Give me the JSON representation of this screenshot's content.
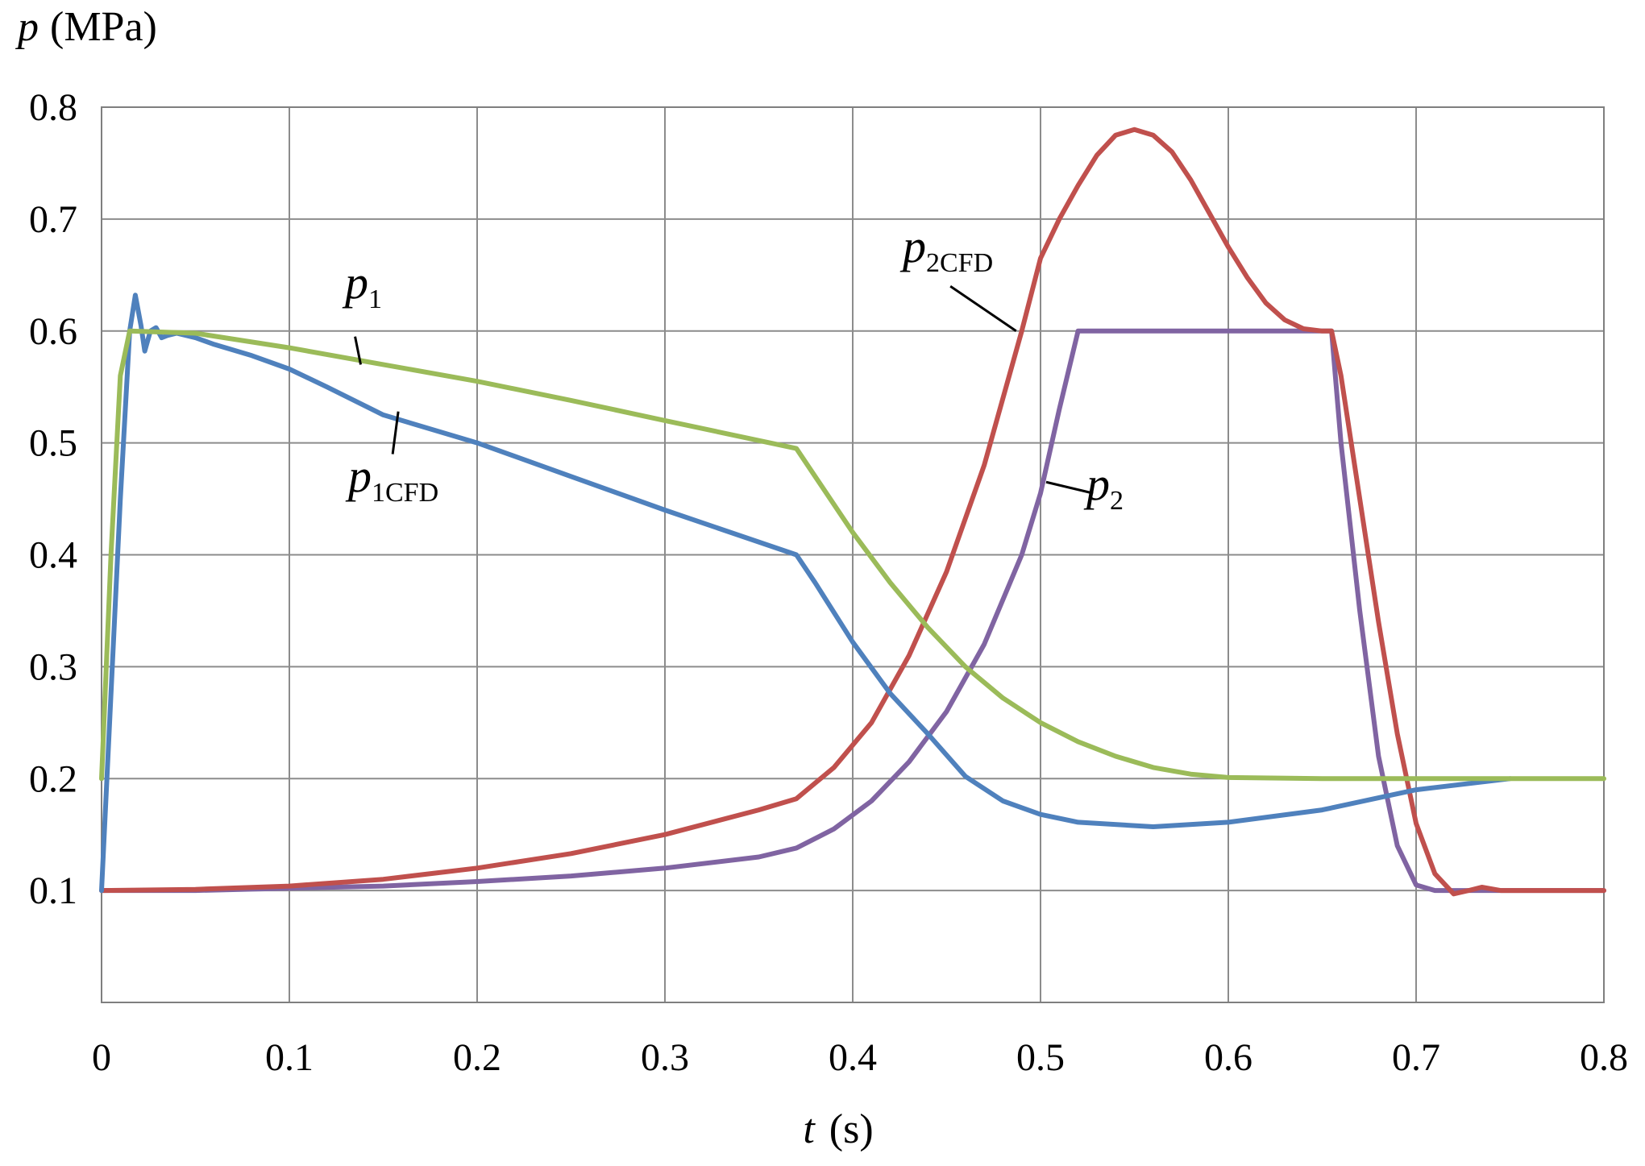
{
  "chart_data": {
    "type": "line",
    "xlabel": {
      "symbol": "t",
      "unit": "(s)"
    },
    "ylabel": {
      "symbol": "p",
      "unit": "(MPa)"
    },
    "xlim": [
      0,
      0.8
    ],
    "ylim": [
      0,
      0.8
    ],
    "xticks": [
      0,
      0.1,
      0.2,
      0.3,
      0.4,
      0.5,
      0.6,
      0.7,
      0.8
    ],
    "yticks": [
      0.1,
      0.2,
      0.3,
      0.4,
      0.5,
      0.6,
      0.7,
      0.8
    ],
    "xtick_labels": [
      "0",
      "0.1",
      "0.2",
      "0.3",
      "0.4",
      "0.5",
      "0.6",
      "0.7",
      "0.8"
    ],
    "ytick_labels": [
      "0.1",
      "0.2",
      "0.3",
      "0.4",
      "0.5",
      "0.6",
      "0.7",
      "0.8"
    ],
    "grid": true,
    "series": [
      {
        "name": "p1",
        "label_main": "p",
        "label_sub": "1",
        "color": "#9bbb59",
        "points": [
          [
            0,
            0.2
          ],
          [
            0.005,
            0.4
          ],
          [
            0.01,
            0.56
          ],
          [
            0.015,
            0.6
          ],
          [
            0.05,
            0.598
          ],
          [
            0.1,
            0.585
          ],
          [
            0.15,
            0.57
          ],
          [
            0.2,
            0.555
          ],
          [
            0.25,
            0.538
          ],
          [
            0.3,
            0.52
          ],
          [
            0.37,
            0.495
          ],
          [
            0.38,
            0.47
          ],
          [
            0.4,
            0.42
          ],
          [
            0.42,
            0.375
          ],
          [
            0.44,
            0.335
          ],
          [
            0.46,
            0.3
          ],
          [
            0.48,
            0.272
          ],
          [
            0.5,
            0.25
          ],
          [
            0.52,
            0.233
          ],
          [
            0.54,
            0.22
          ],
          [
            0.56,
            0.21
          ],
          [
            0.58,
            0.204
          ],
          [
            0.6,
            0.201
          ],
          [
            0.65,
            0.2
          ],
          [
            0.7,
            0.2
          ],
          [
            0.75,
            0.2
          ],
          [
            0.8,
            0.2
          ]
        ]
      },
      {
        "name": "p1CFD",
        "label_main": "p",
        "label_sub": "1CFD",
        "color": "#4f81bd",
        "points": [
          [
            0,
            0.1
          ],
          [
            0.01,
            0.45
          ],
          [
            0.015,
            0.6
          ],
          [
            0.018,
            0.632
          ],
          [
            0.021,
            0.605
          ],
          [
            0.023,
            0.582
          ],
          [
            0.026,
            0.6
          ],
          [
            0.029,
            0.603
          ],
          [
            0.032,
            0.594
          ],
          [
            0.035,
            0.596
          ],
          [
            0.04,
            0.598
          ],
          [
            0.05,
            0.594
          ],
          [
            0.06,
            0.588
          ],
          [
            0.08,
            0.578
          ],
          [
            0.1,
            0.566
          ],
          [
            0.12,
            0.55
          ],
          [
            0.15,
            0.525
          ],
          [
            0.2,
            0.5
          ],
          [
            0.25,
            0.47
          ],
          [
            0.3,
            0.44
          ],
          [
            0.37,
            0.4
          ],
          [
            0.38,
            0.375
          ],
          [
            0.4,
            0.322
          ],
          [
            0.42,
            0.276
          ],
          [
            0.44,
            0.24
          ],
          [
            0.46,
            0.202
          ],
          [
            0.48,
            0.18
          ],
          [
            0.5,
            0.168
          ],
          [
            0.52,
            0.161
          ],
          [
            0.56,
            0.157
          ],
          [
            0.6,
            0.161
          ],
          [
            0.65,
            0.172
          ],
          [
            0.7,
            0.19
          ],
          [
            0.75,
            0.2
          ]
        ]
      },
      {
        "name": "p2CFD",
        "label_main": "p",
        "label_sub": "2CFD",
        "color": "#c0504d",
        "points": [
          [
            0,
            0.1
          ],
          [
            0.05,
            0.101
          ],
          [
            0.1,
            0.104
          ],
          [
            0.15,
            0.11
          ],
          [
            0.2,
            0.12
          ],
          [
            0.25,
            0.133
          ],
          [
            0.3,
            0.15
          ],
          [
            0.35,
            0.172
          ],
          [
            0.37,
            0.182
          ],
          [
            0.39,
            0.21
          ],
          [
            0.41,
            0.25
          ],
          [
            0.43,
            0.31
          ],
          [
            0.45,
            0.385
          ],
          [
            0.47,
            0.48
          ],
          [
            0.49,
            0.6
          ],
          [
            0.5,
            0.665
          ],
          [
            0.51,
            0.7
          ],
          [
            0.52,
            0.73
          ],
          [
            0.53,
            0.757
          ],
          [
            0.54,
            0.775
          ],
          [
            0.55,
            0.78
          ],
          [
            0.56,
            0.775
          ],
          [
            0.57,
            0.76
          ],
          [
            0.58,
            0.735
          ],
          [
            0.59,
            0.705
          ],
          [
            0.6,
            0.675
          ],
          [
            0.61,
            0.648
          ],
          [
            0.62,
            0.625
          ],
          [
            0.63,
            0.61
          ],
          [
            0.64,
            0.602
          ],
          [
            0.65,
            0.6
          ],
          [
            0.655,
            0.6
          ],
          [
            0.66,
            0.56
          ],
          [
            0.67,
            0.45
          ],
          [
            0.68,
            0.34
          ],
          [
            0.69,
            0.24
          ],
          [
            0.7,
            0.16
          ],
          [
            0.71,
            0.115
          ],
          [
            0.72,
            0.097
          ],
          [
            0.728,
            0.1
          ],
          [
            0.735,
            0.103
          ],
          [
            0.745,
            0.1
          ],
          [
            0.8,
            0.1
          ]
        ]
      },
      {
        "name": "p2",
        "label_main": "p",
        "label_sub": "2",
        "color": "#8064a2",
        "points": [
          [
            0,
            0.1
          ],
          [
            0.05,
            0.1
          ],
          [
            0.1,
            0.102
          ],
          [
            0.15,
            0.104
          ],
          [
            0.2,
            0.108
          ],
          [
            0.25,
            0.113
          ],
          [
            0.3,
            0.12
          ],
          [
            0.35,
            0.13
          ],
          [
            0.37,
            0.138
          ],
          [
            0.39,
            0.155
          ],
          [
            0.41,
            0.18
          ],
          [
            0.43,
            0.215
          ],
          [
            0.45,
            0.26
          ],
          [
            0.47,
            0.32
          ],
          [
            0.49,
            0.4
          ],
          [
            0.5,
            0.455
          ],
          [
            0.51,
            0.53
          ],
          [
            0.52,
            0.6
          ],
          [
            0.55,
            0.6
          ],
          [
            0.6,
            0.6
          ],
          [
            0.655,
            0.6
          ],
          [
            0.66,
            0.5
          ],
          [
            0.67,
            0.35
          ],
          [
            0.68,
            0.22
          ],
          [
            0.69,
            0.14
          ],
          [
            0.7,
            0.105
          ],
          [
            0.71,
            0.1
          ],
          [
            0.8,
            0.1
          ]
        ]
      }
    ]
  }
}
